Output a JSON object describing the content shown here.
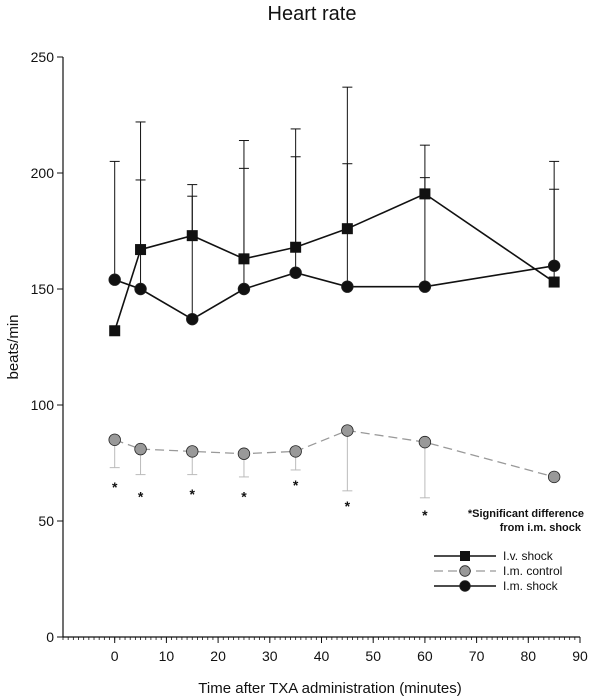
{
  "chart_data": {
    "type": "line",
    "title": "Heart rate",
    "xlabel": "Time after TXA administration (minutes)",
    "ylabel": "beats/min",
    "xlim": [
      -10,
      90
    ],
    "ylim": [
      0,
      250
    ],
    "x_ticks": [
      0,
      10,
      20,
      30,
      40,
      50,
      60,
      70,
      80,
      90
    ],
    "y_ticks": [
      0,
      50,
      100,
      150,
      200,
      250
    ],
    "grid": false,
    "legend_position": "bottom-right",
    "series": [
      {
        "name": "I.v. shock",
        "color": "#111111",
        "marker": "square",
        "dash": "solid",
        "x": [
          0,
          5,
          15,
          25,
          35,
          45,
          60,
          85
        ],
        "y": [
          132,
          167,
          173,
          163,
          168,
          176,
          191,
          153
        ],
        "error_upper": [
          null,
          222,
          195,
          214,
          219,
          237,
          212,
          193
        ],
        "error_lower": [
          null,
          null,
          null,
          null,
          null,
          null,
          null,
          null
        ]
      },
      {
        "name": "I.m. control",
        "color": "#999999",
        "marker": "circle",
        "dash": "dashed",
        "x": [
          0,
          5,
          15,
          25,
          35,
          45,
          60,
          85
        ],
        "y": [
          85,
          81,
          80,
          79,
          80,
          89,
          84,
          69
        ],
        "error_upper": [
          null,
          null,
          null,
          null,
          null,
          null,
          null,
          null
        ],
        "error_lower": [
          73,
          70,
          70,
          69,
          72,
          63,
          60,
          null
        ]
      },
      {
        "name": "I.m. shock",
        "color": "#111111",
        "marker": "circle",
        "dash": "solid",
        "x": [
          0,
          5,
          15,
          25,
          35,
          45,
          60,
          85
        ],
        "y": [
          154,
          150,
          137,
          150,
          157,
          151,
          151,
          160
        ],
        "error_upper": [
          205,
          197,
          190,
          202,
          207,
          204,
          198,
          205
        ],
        "error_lower": [
          null,
          null,
          null,
          null,
          null,
          null,
          null,
          null
        ]
      }
    ],
    "significance_marker": "*",
    "significance_x": [
      0,
      5,
      15,
      25,
      35,
      45,
      60
    ],
    "significance_y": [
      65,
      61,
      62,
      61,
      66,
      57,
      53
    ],
    "annotation": [
      "*Significant difference",
      "from i.m. shock"
    ]
  }
}
